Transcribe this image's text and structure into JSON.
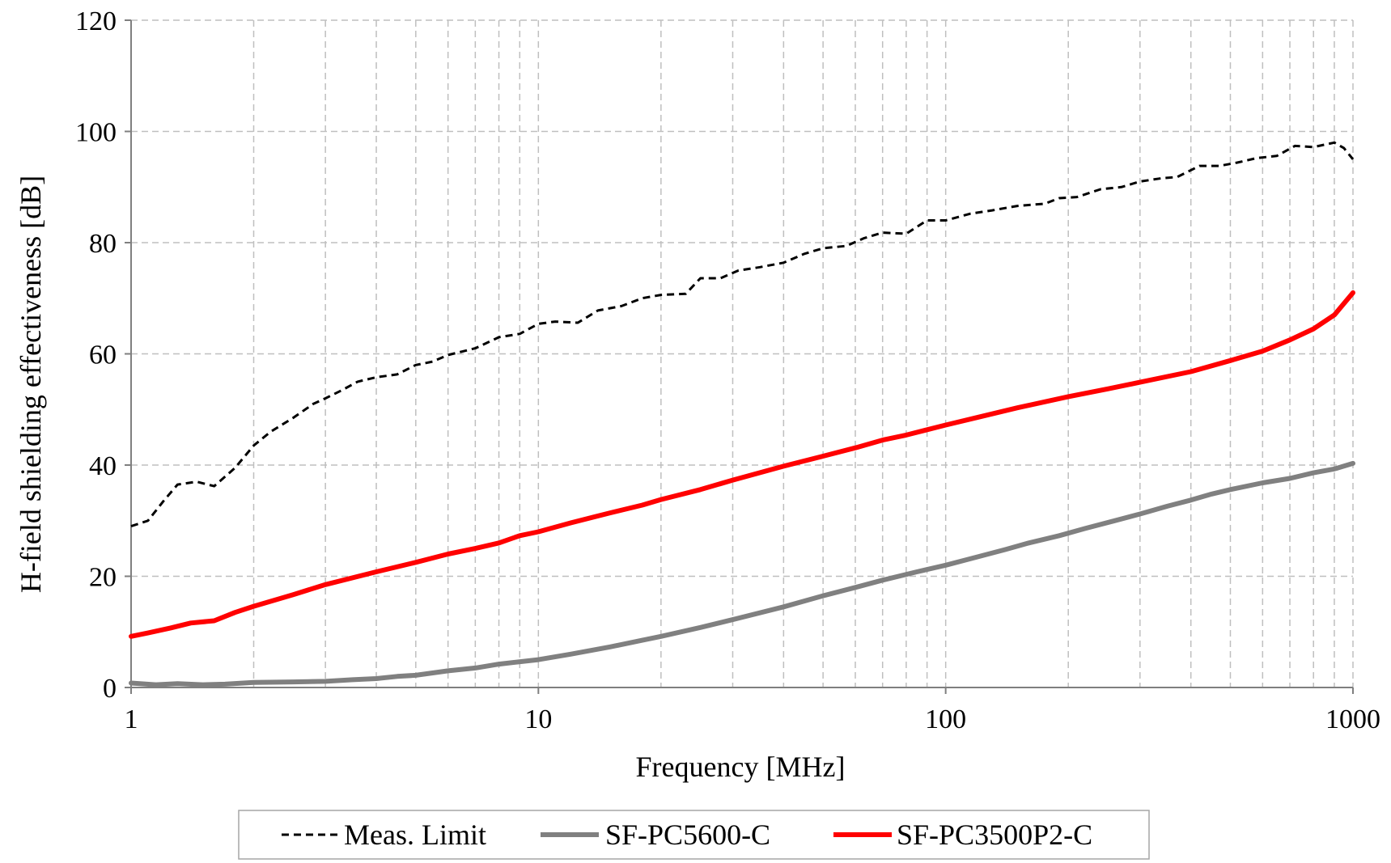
{
  "chart_data": {
    "type": "line",
    "title": "",
    "xlabel": "Frequency [MHz]",
    "ylabel": "H-field shielding effectiveness [dB]",
    "xscale": "log",
    "xlim": [
      1,
      1000
    ],
    "ylim": [
      0,
      120
    ],
    "x_ticks": [
      "1",
      "10",
      "100",
      "1000"
    ],
    "y_ticks": [
      "0",
      "20",
      "40",
      "60",
      "80",
      "100",
      "120"
    ],
    "grid": "dashed major and minor gridlines",
    "legend_position": "bottom",
    "series": [
      {
        "name": "Meas. Limit",
        "color": "#000000",
        "line_style": "dashed",
        "points": [
          [
            1,
            29
          ],
          [
            1.1,
            30
          ],
          [
            1.2,
            33.5
          ],
          [
            1.3,
            36.5
          ],
          [
            1.45,
            37
          ],
          [
            1.6,
            36.2
          ],
          [
            1.8,
            39.5
          ],
          [
            2,
            43.5
          ],
          [
            2.2,
            46
          ],
          [
            2.5,
            48.5
          ],
          [
            2.8,
            51
          ],
          [
            3,
            52
          ],
          [
            3.3,
            53.5
          ],
          [
            3.6,
            55
          ],
          [
            4,
            55.8
          ],
          [
            4.5,
            56.3
          ],
          [
            5,
            58
          ],
          [
            5.5,
            58.6
          ],
          [
            6,
            59.8
          ],
          [
            7,
            61
          ],
          [
            8,
            63
          ],
          [
            9,
            63.6
          ],
          [
            10,
            65.4
          ],
          [
            11,
            65.8
          ],
          [
            12.5,
            65.6
          ],
          [
            14,
            67.8
          ],
          [
            16,
            68.6
          ],
          [
            18,
            70
          ],
          [
            20,
            70.6
          ],
          [
            23,
            70.8
          ],
          [
            25,
            73.6
          ],
          [
            28,
            73.6
          ],
          [
            31,
            75
          ],
          [
            35,
            75.6
          ],
          [
            40,
            76.4
          ],
          [
            45,
            78
          ],
          [
            50,
            79
          ],
          [
            57,
            79.4
          ],
          [
            63,
            80.8
          ],
          [
            70,
            81.8
          ],
          [
            80,
            81.6
          ],
          [
            90,
            84
          ],
          [
            100,
            84
          ],
          [
            115,
            85.2
          ],
          [
            130,
            85.8
          ],
          [
            150,
            86.6
          ],
          [
            175,
            87
          ],
          [
            190,
            88
          ],
          [
            210,
            88.2
          ],
          [
            240,
            89.6
          ],
          [
            270,
            90
          ],
          [
            300,
            91
          ],
          [
            340,
            91.6
          ],
          [
            370,
            91.8
          ],
          [
            420,
            93.8
          ],
          [
            470,
            93.8
          ],
          [
            520,
            94.4
          ],
          [
            580,
            95.2
          ],
          [
            650,
            95.6
          ],
          [
            720,
            97.4
          ],
          [
            800,
            97.2
          ],
          [
            900,
            98
          ],
          [
            950,
            97
          ],
          [
            1000,
            95
          ]
        ]
      },
      {
        "name": "SF-PC5600-C",
        "color": "#808080",
        "line_style": "solid",
        "points": [
          [
            1,
            0.8
          ],
          [
            1.15,
            0.5
          ],
          [
            1.3,
            0.7
          ],
          [
            1.5,
            0.5
          ],
          [
            1.7,
            0.6
          ],
          [
            2,
            0.9
          ],
          [
            2.5,
            1
          ],
          [
            3,
            1.1
          ],
          [
            3.5,
            1.4
          ],
          [
            4,
            1.6
          ],
          [
            4.5,
            2
          ],
          [
            5,
            2.2
          ],
          [
            6,
            3
          ],
          [
            7,
            3.5
          ],
          [
            8,
            4.2
          ],
          [
            10,
            5
          ],
          [
            12,
            6
          ],
          [
            15,
            7.3
          ],
          [
            18,
            8.5
          ],
          [
            20,
            9.2
          ],
          [
            25,
            10.8
          ],
          [
            30,
            12.2
          ],
          [
            40,
            14.5
          ],
          [
            50,
            16.5
          ],
          [
            60,
            18
          ],
          [
            70,
            19.3
          ],
          [
            85,
            20.8
          ],
          [
            100,
            22
          ],
          [
            120,
            23.5
          ],
          [
            140,
            24.8
          ],
          [
            160,
            26
          ],
          [
            190,
            27.3
          ],
          [
            220,
            28.6
          ],
          [
            260,
            30
          ],
          [
            300,
            31.2
          ],
          [
            350,
            32.6
          ],
          [
            400,
            33.7
          ],
          [
            450,
            34.8
          ],
          [
            500,
            35.6
          ],
          [
            600,
            36.8
          ],
          [
            700,
            37.6
          ],
          [
            800,
            38.6
          ],
          [
            900,
            39.3
          ],
          [
            1000,
            40.3
          ]
        ]
      },
      {
        "name": "SF-PC3500P2-C",
        "color": "#ff0000",
        "line_style": "solid",
        "points": [
          [
            1,
            9.2
          ],
          [
            1.1,
            9.8
          ],
          [
            1.25,
            10.7
          ],
          [
            1.4,
            11.6
          ],
          [
            1.6,
            12
          ],
          [
            1.8,
            13.5
          ],
          [
            2,
            14.6
          ],
          [
            2.5,
            16.7
          ],
          [
            3,
            18.5
          ],
          [
            4,
            20.8
          ],
          [
            5,
            22.5
          ],
          [
            6,
            24
          ],
          [
            7,
            25
          ],
          [
            8,
            26
          ],
          [
            9,
            27.3
          ],
          [
            10,
            28
          ],
          [
            12,
            29.6
          ],
          [
            15,
            31.4
          ],
          [
            18,
            32.8
          ],
          [
            20,
            33.8
          ],
          [
            25,
            35.6
          ],
          [
            30,
            37.3
          ],
          [
            40,
            39.8
          ],
          [
            50,
            41.6
          ],
          [
            60,
            43.1
          ],
          [
            70,
            44.5
          ],
          [
            80,
            45.4
          ],
          [
            100,
            47.2
          ],
          [
            120,
            48.6
          ],
          [
            150,
            50.3
          ],
          [
            200,
            52.3
          ],
          [
            250,
            53.7
          ],
          [
            300,
            54.9
          ],
          [
            400,
            56.8
          ],
          [
            500,
            58.8
          ],
          [
            600,
            60.5
          ],
          [
            700,
            62.5
          ],
          [
            800,
            64.5
          ],
          [
            900,
            67
          ],
          [
            1000,
            71
          ]
        ]
      }
    ]
  }
}
